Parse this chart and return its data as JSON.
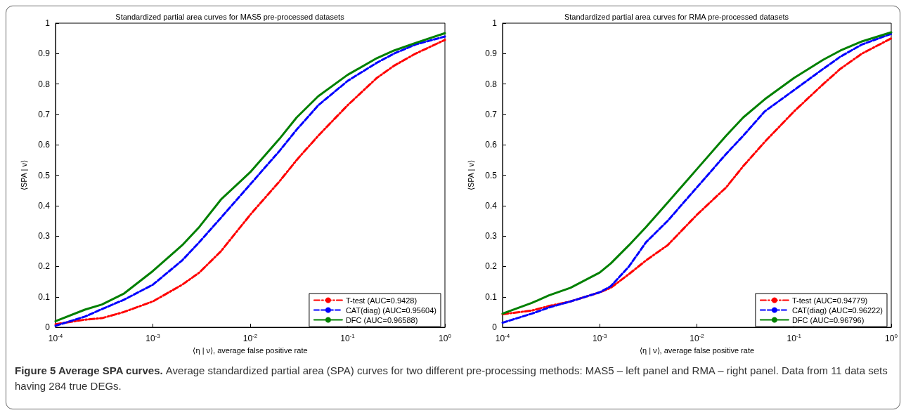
{
  "chart_data": [
    {
      "type": "line",
      "title": "Standardized partial area curves for MAS5 pre-processed datasets",
      "xlabel": "⟨η | ν⟩, average false positive rate",
      "ylabel": "⟨SPA | ν⟩",
      "log": "x",
      "grid": false,
      "legend": "bottom right",
      "xlim": [
        0.0001,
        1
      ],
      "xticks": [
        {
          "value": 0.0001,
          "label": "10$^{-4}$"
        },
        {
          "value": 0.001,
          "label": "10$^{-3}$"
        },
        {
          "value": 0.01,
          "label": "10$^{-2}$"
        },
        {
          "value": 0.1,
          "label": "10$^{-1}$"
        },
        {
          "value": 1,
          "label": "10$^{0}$"
        }
      ],
      "ylim": [
        0,
        1
      ],
      "yticks": [
        0,
        0.1,
        0.2,
        0.3,
        0.4,
        0.5,
        0.6,
        0.7,
        0.8,
        0.9,
        1
      ],
      "x": [
        0.0001,
        0.0002,
        0.0003,
        0.0005,
        0.001,
        0.002,
        0.003,
        0.005,
        0.01,
        0.02,
        0.03,
        0.05,
        0.1,
        0.2,
        0.3,
        0.5,
        1
      ],
      "series": [
        {
          "name": "T-test (AUC=0.9428)",
          "color": "#ff0000",
          "line_style": "dashdot",
          "values": [
            0.01,
            0.025,
            0.03,
            0.05,
            0.085,
            0.14,
            0.18,
            0.25,
            0.37,
            0.48,
            0.55,
            0.63,
            0.73,
            0.82,
            0.86,
            0.9,
            0.945
          ]
        },
        {
          "name": "CAT(diag) (AUC=0.95604)",
          "color": "#0000ff",
          "line_style": "dashed",
          "values": [
            0.005,
            0.035,
            0.06,
            0.09,
            0.14,
            0.22,
            0.28,
            0.36,
            0.47,
            0.58,
            0.65,
            0.73,
            0.81,
            0.87,
            0.9,
            0.93,
            0.956
          ]
        },
        {
          "name": "DFC (AUC=0.96588)",
          "color": "#008000",
          "line_style": "solid",
          "values": [
            0.02,
            0.058,
            0.075,
            0.11,
            0.185,
            0.27,
            0.33,
            0.42,
            0.51,
            0.62,
            0.69,
            0.76,
            0.83,
            0.885,
            0.91,
            0.935,
            0.967
          ]
        }
      ],
      "annotations": [
        "Figure 5 Average SPA curves.",
        "Average standardized partial area (SPA) curves for two different pre-processing methods: MAS5 – left panel and RMA – right panel. Data from 11 data sets having 284 true DEGs."
      ]
    },
    {
      "type": "line",
      "title": "Standardized partial area curves for RMA pre-processed datasets",
      "xlabel": "⟨η | ν⟩, average false positive rate",
      "ylabel": "⟨SPA | ν⟩",
      "log": "x",
      "grid": false,
      "legend": "bottom right",
      "xlim": [
        0.0001,
        1
      ],
      "xticks": [
        {
          "value": 0.0001,
          "label": "10$^{-4}$"
        },
        {
          "value": 0.001,
          "label": "10$^{-3}$"
        },
        {
          "value": 0.01,
          "label": "10$^{-2}$"
        },
        {
          "value": 0.1,
          "label": "10$^{-1}$"
        },
        {
          "value": 1,
          "label": "10$^{0}$"
        }
      ],
      "ylim": [
        0,
        1
      ],
      "yticks": [
        0,
        0.1,
        0.2,
        0.3,
        0.4,
        0.5,
        0.6,
        0.7,
        0.8,
        0.9,
        1
      ],
      "x": [
        0.0001,
        0.0002,
        0.0003,
        0.0005,
        0.001,
        0.0013,
        0.002,
        0.003,
        0.005,
        0.01,
        0.02,
        0.03,
        0.05,
        0.1,
        0.2,
        0.3,
        0.5,
        1
      ],
      "series": [
        {
          "name": "T-test (AUC=0.94779)",
          "color": "#ff0000",
          "line_style": "dashdot",
          "values": [
            0.043,
            0.055,
            0.07,
            0.085,
            0.115,
            0.13,
            0.175,
            0.22,
            0.27,
            0.37,
            0.46,
            0.53,
            0.61,
            0.71,
            0.8,
            0.85,
            0.9,
            0.95
          ]
        },
        {
          "name": "CAT(diag) (AUC=0.96222)",
          "color": "#0000ff",
          "line_style": "dashed",
          "values": [
            0.015,
            0.045,
            0.065,
            0.085,
            0.115,
            0.135,
            0.2,
            0.28,
            0.35,
            0.46,
            0.57,
            0.63,
            0.71,
            0.78,
            0.85,
            0.89,
            0.93,
            0.965
          ]
        },
        {
          "name": "DFC (AUC=0.96796)",
          "color": "#008000",
          "line_style": "solid",
          "values": [
            0.045,
            0.08,
            0.105,
            0.13,
            0.18,
            0.21,
            0.27,
            0.33,
            0.41,
            0.52,
            0.63,
            0.69,
            0.75,
            0.82,
            0.88,
            0.91,
            0.94,
            0.97
          ]
        }
      ]
    }
  ]
}
